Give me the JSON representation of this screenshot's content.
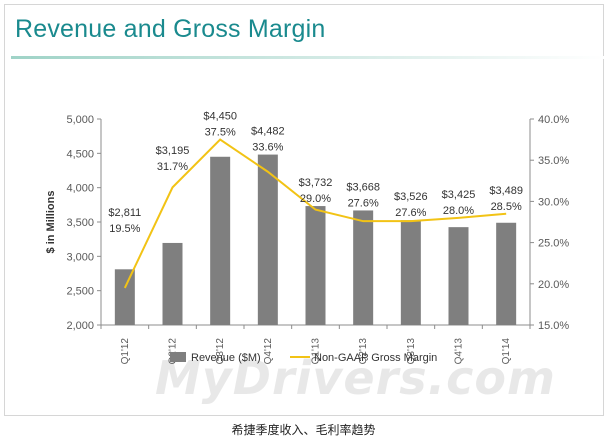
{
  "title": "Revenue and Gross Margin",
  "caption": "希捷季度收入、毛利率趋势",
  "watermark": "MyDrivers.com",
  "colors": {
    "title": "#1a8a8e",
    "bar": "#7f7f7f",
    "line": "#f2c315",
    "axis": "#595959"
  },
  "chart_data": {
    "type": "bar",
    "categories": [
      "Q1'12",
      "Q2'12",
      "Q3'12",
      "Q4'12",
      "Q1'13",
      "Q2'13",
      "Q3'13",
      "Q4'13",
      "Q1'14"
    ],
    "series": [
      {
        "name": "Revenue ($M)",
        "type": "bar",
        "axis": "left",
        "values": [
          2811,
          3195,
          4450,
          4482,
          3732,
          3668,
          3526,
          3425,
          3489
        ],
        "labels": [
          "$2,811",
          "$3,195",
          "$4,450",
          "$4,482",
          "$3,732",
          "$3,668",
          "$3,526",
          "$3,425",
          "$3,489"
        ]
      },
      {
        "name": "Non-GAAP Gross Margin",
        "type": "line",
        "axis": "right",
        "values": [
          19.5,
          31.7,
          37.5,
          33.6,
          29.0,
          27.6,
          27.6,
          28.0,
          28.5
        ],
        "labels": [
          "19.5%",
          "31.7%",
          "37.5%",
          "33.6%",
          "29.0%",
          "27.6%",
          "27.6%",
          "28.0%",
          "28.5%"
        ]
      }
    ],
    "ylabel": "$ in Millions",
    "ylim": [
      2000,
      5000
    ],
    "y_ticks": [
      "2,000",
      "2,500",
      "3,000",
      "3,500",
      "4,000",
      "4,500",
      "5,000"
    ],
    "y2lim": [
      15,
      40
    ],
    "y2_ticks": [
      "15.0%",
      "20.0%",
      "25.0%",
      "30.0%",
      "35.0%",
      "40.0%"
    ],
    "legend_position": "bottom",
    "grid": false
  }
}
